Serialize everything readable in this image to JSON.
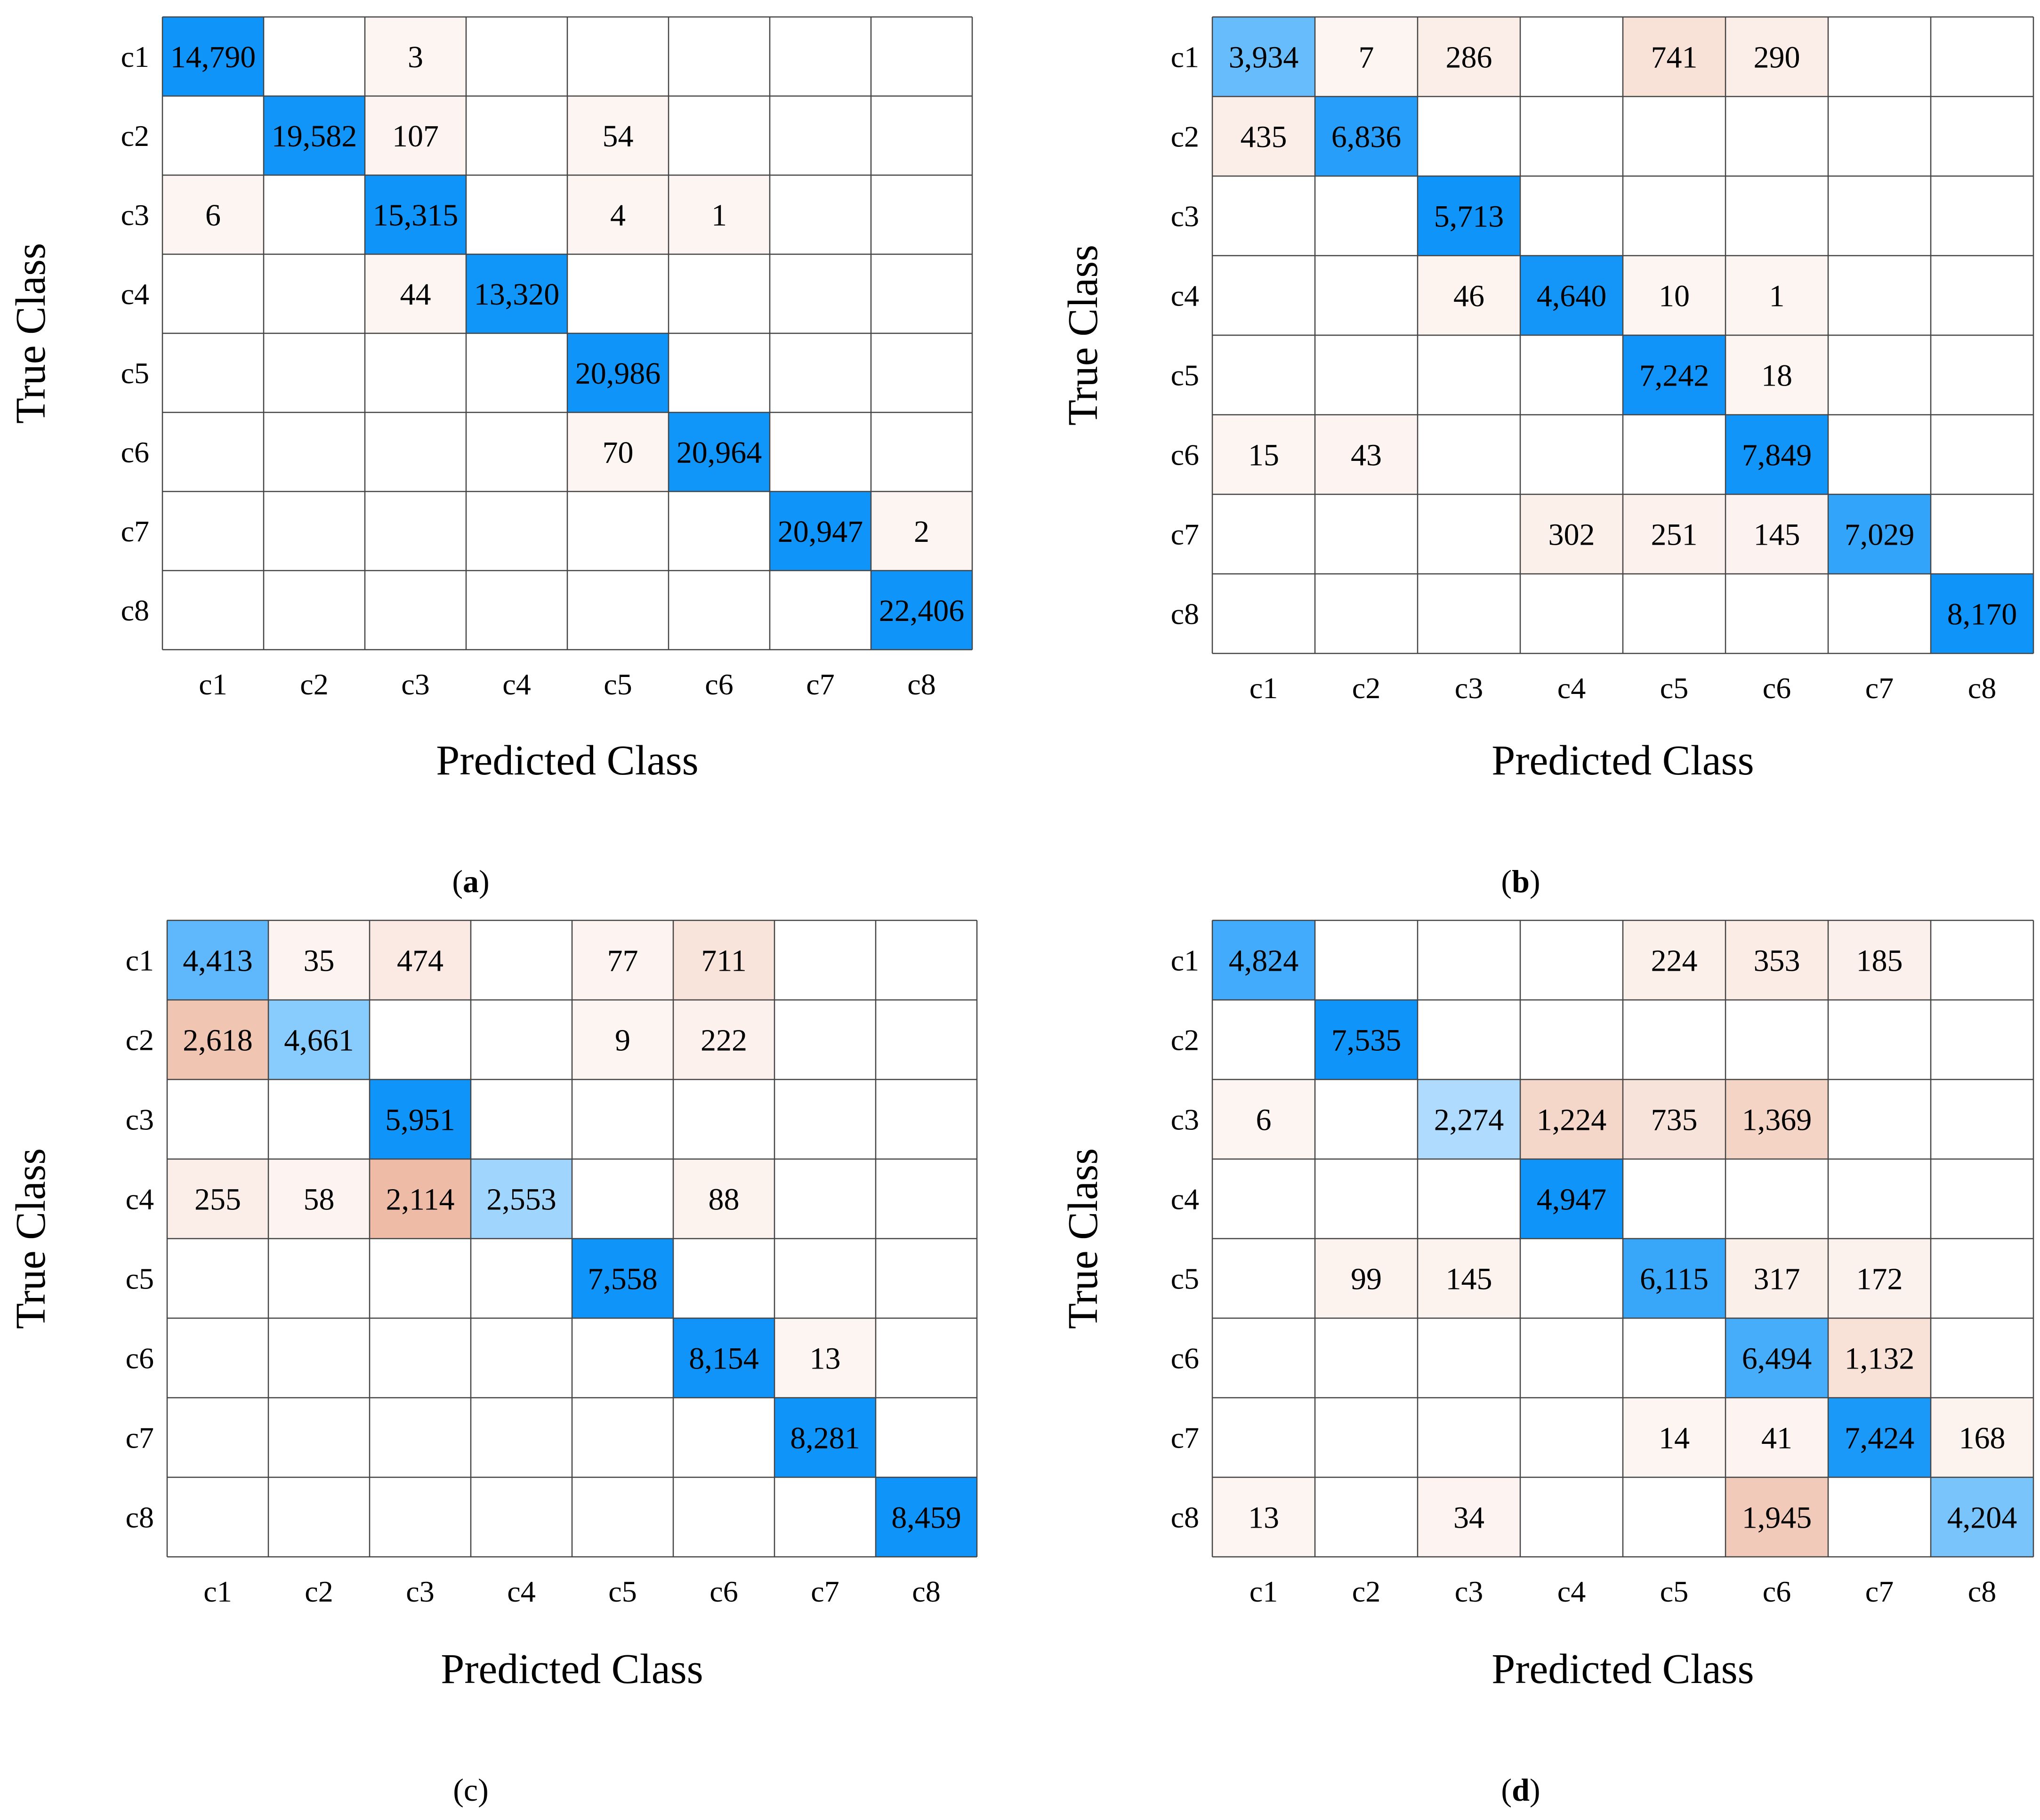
{
  "chart_data": [
    {
      "type": "heatmap",
      "caption_letter": "a",
      "caption_bold": true,
      "xlabel": "Predicted Class",
      "ylabel": "True Class",
      "row_labels": [
        "c1",
        "c2",
        "c3",
        "c4",
        "c5",
        "c6",
        "c7",
        "c8"
      ],
      "col_labels": [
        "c1",
        "c2",
        "c3",
        "c4",
        "c5",
        "c6",
        "c7",
        "c8"
      ],
      "matrix": [
        [
          14790,
          0,
          3,
          0,
          0,
          0,
          0,
          0
        ],
        [
          0,
          19582,
          107,
          0,
          54,
          0,
          0,
          0
        ],
        [
          6,
          0,
          15315,
          0,
          4,
          1,
          0,
          0
        ],
        [
          0,
          0,
          44,
          13320,
          0,
          0,
          0,
          0
        ],
        [
          0,
          0,
          0,
          0,
          20986,
          0,
          0,
          0
        ],
        [
          0,
          0,
          0,
          0,
          70,
          20964,
          0,
          0
        ],
        [
          0,
          0,
          0,
          0,
          0,
          0,
          20947,
          2
        ],
        [
          0,
          0,
          0,
          0,
          0,
          0,
          0,
          22406
        ]
      ]
    },
    {
      "type": "heatmap",
      "caption_letter": "b",
      "caption_bold": true,
      "xlabel": "Predicted Class",
      "ylabel": "True Class",
      "row_labels": [
        "c1",
        "c2",
        "c3",
        "c4",
        "c5",
        "c6",
        "c7",
        "c8"
      ],
      "col_labels": [
        "c1",
        "c2",
        "c3",
        "c4",
        "c5",
        "c6",
        "c7",
        "c8"
      ],
      "matrix": [
        [
          3934,
          7,
          286,
          0,
          741,
          290,
          0,
          0
        ],
        [
          435,
          6836,
          0,
          0,
          0,
          0,
          0,
          0
        ],
        [
          0,
          0,
          5713,
          0,
          0,
          0,
          0,
          0
        ],
        [
          0,
          0,
          46,
          4640,
          10,
          1,
          0,
          0
        ],
        [
          0,
          0,
          0,
          0,
          7242,
          18,
          0,
          0
        ],
        [
          15,
          43,
          0,
          0,
          0,
          7849,
          0,
          0
        ],
        [
          0,
          0,
          0,
          302,
          251,
          145,
          7029,
          0
        ],
        [
          0,
          0,
          0,
          0,
          0,
          0,
          0,
          8170
        ]
      ]
    },
    {
      "type": "heatmap",
      "caption_letter": "c",
      "caption_bold": false,
      "xlabel": "Predicted Class",
      "ylabel": "True Class",
      "row_labels": [
        "c1",
        "c2",
        "c3",
        "c4",
        "c5",
        "c6",
        "c7",
        "c8"
      ],
      "col_labels": [
        "c1",
        "c2",
        "c3",
        "c4",
        "c5",
        "c6",
        "c7",
        "c8"
      ],
      "matrix": [
        [
          4413,
          35,
          474,
          0,
          77,
          711,
          0,
          0
        ],
        [
          2618,
          4661,
          0,
          0,
          9,
          222,
          0,
          0
        ],
        [
          0,
          0,
          5951,
          0,
          0,
          0,
          0,
          0
        ],
        [
          255,
          58,
          2114,
          2553,
          0,
          88,
          0,
          0
        ],
        [
          0,
          0,
          0,
          0,
          7558,
          0,
          0,
          0
        ],
        [
          0,
          0,
          0,
          0,
          0,
          8154,
          13,
          0
        ],
        [
          0,
          0,
          0,
          0,
          0,
          0,
          8281,
          0
        ],
        [
          0,
          0,
          0,
          0,
          0,
          0,
          0,
          8459
        ]
      ]
    },
    {
      "type": "heatmap",
      "caption_letter": "d",
      "caption_bold": true,
      "xlabel": "Predicted Class",
      "ylabel": "True Class",
      "row_labels": [
        "c1",
        "c2",
        "c3",
        "c4",
        "c5",
        "c6",
        "c7",
        "c8"
      ],
      "col_labels": [
        "c1",
        "c2",
        "c3",
        "c4",
        "c5",
        "c6",
        "c7",
        "c8"
      ],
      "matrix": [
        [
          4824,
          0,
          0,
          0,
          224,
          353,
          185,
          0
        ],
        [
          0,
          7535,
          0,
          0,
          0,
          0,
          0,
          0
        ],
        [
          6,
          0,
          2274,
          1224,
          735,
          1369,
          0,
          0
        ],
        [
          0,
          0,
          0,
          4947,
          0,
          0,
          0,
          0
        ],
        [
          0,
          99,
          145,
          0,
          6115,
          317,
          172,
          0
        ],
        [
          0,
          0,
          0,
          0,
          0,
          6494,
          1132,
          0
        ],
        [
          0,
          0,
          0,
          0,
          14,
          41,
          7424,
          168
        ],
        [
          13,
          0,
          34,
          0,
          0,
          1945,
          0,
          4204
        ]
      ]
    }
  ],
  "colors": {
    "diag_strong": "#0f94f9",
    "diag_light": "#c9e8ff",
    "off_diag_light": "#fdf5f2",
    "off_diag_strong": "#eebca6",
    "grid": "#444444"
  }
}
